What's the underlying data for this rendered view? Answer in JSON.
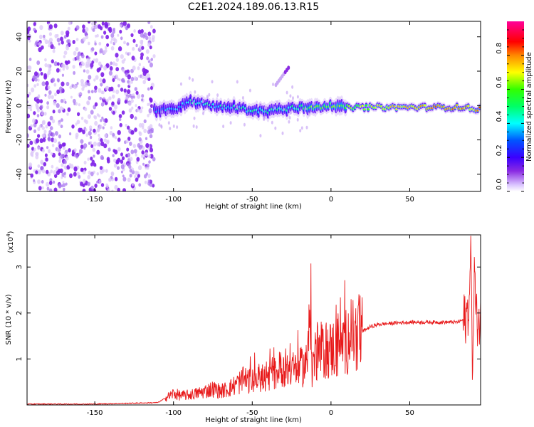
{
  "title": "C2E1.2024.189.06.13.R15",
  "chart_data": [
    {
      "type": "heatmap",
      "xlabel": "Height of straight line (km)",
      "ylabel": "Frequency (Hz)",
      "xlim": [
        -193,
        95
      ],
      "ylim": [
        -50,
        49
      ],
      "x_ticks": [
        -150,
        -100,
        -50,
        0,
        50
      ],
      "y_ticks": [
        40,
        20,
        0,
        -20,
        -40
      ],
      "colorbar": {
        "label": "Normalized spectral amplitude",
        "range": [
          0,
          1
        ],
        "ticks": [
          "0.0",
          "0.2",
          "0.4",
          "0.6",
          "0.8"
        ],
        "colors": [
          "#f2e6ff",
          "#7a00ff",
          "#0000ff",
          "#00ffff",
          "#00ff00",
          "#ffff00",
          "#ff0000",
          "#ff00cc"
        ]
      },
      "noise_region_x": [
        -193,
        -112
      ],
      "ridge": {
        "x": [
          -112,
          -100,
          -90,
          -80,
          -70,
          -60,
          -50,
          -40,
          -30,
          -20,
          -10,
          0,
          10,
          20,
          30,
          50,
          70,
          85,
          90,
          95
        ],
        "y": [
          -3,
          -2,
          2,
          1,
          -1,
          -1,
          -3,
          -3,
          -2,
          -1,
          -1,
          0,
          -1,
          -1,
          -1,
          -1,
          -1,
          -1,
          -2,
          -2
        ],
        "amplitude": [
          0.3,
          0.35,
          0.4,
          0.4,
          0.4,
          0.4,
          0.45,
          0.45,
          0.45,
          0.5,
          0.6,
          0.6,
          0.6,
          0.65,
          0.7,
          0.75,
          0.8,
          0.8,
          0.7,
          0.8
        ]
      },
      "harmonic": {
        "x": [
          -35,
          -27
        ],
        "y": [
          12,
          22
        ]
      }
    },
    {
      "type": "line",
      "xlabel": "Height of straight line (km)",
      "ylabel": "SNR (10 * v/v)",
      "y_scale_label": "(x10",
      "y_scale_exp": "4",
      "xlim": [
        -193,
        95
      ],
      "ylim": [
        0,
        3.7
      ],
      "x_ticks": [
        -150,
        -100,
        -50,
        0,
        50
      ],
      "y_ticks": [
        1,
        2,
        3
      ],
      "color": "#e8191a",
      "series": [
        {
          "x": [
            -193,
            -150,
            -110,
            -100,
            -95,
            -90,
            -85,
            -80,
            -75,
            -70,
            -65,
            -60,
            -55,
            -50,
            -45,
            -40,
            -35,
            -30,
            -25,
            -20,
            -15,
            -13,
            -12,
            -10,
            -5,
            0,
            5,
            10,
            12,
            15,
            20,
            25,
            30,
            40,
            50,
            60,
            70,
            80,
            84,
            86,
            88,
            89,
            90,
            91,
            92,
            95
          ],
          "y": [
            0.02,
            0.02,
            0.05,
            0.25,
            0.2,
            0.22,
            0.25,
            0.3,
            0.35,
            0.3,
            0.35,
            0.45,
            0.55,
            0.5,
            0.6,
            0.55,
            0.7,
            0.85,
            0.75,
            0.8,
            0.9,
            2.4,
            0.8,
            1.1,
            1.2,
            1.2,
            1.3,
            1.4,
            1.6,
            1.5,
            1.6,
            1.7,
            1.75,
            1.78,
            1.8,
            1.8,
            1.8,
            1.8,
            1.85,
            1.9,
            2.3,
            3.6,
            0.3,
            3.2,
            1.9,
            1.8
          ]
        }
      ]
    }
  ]
}
